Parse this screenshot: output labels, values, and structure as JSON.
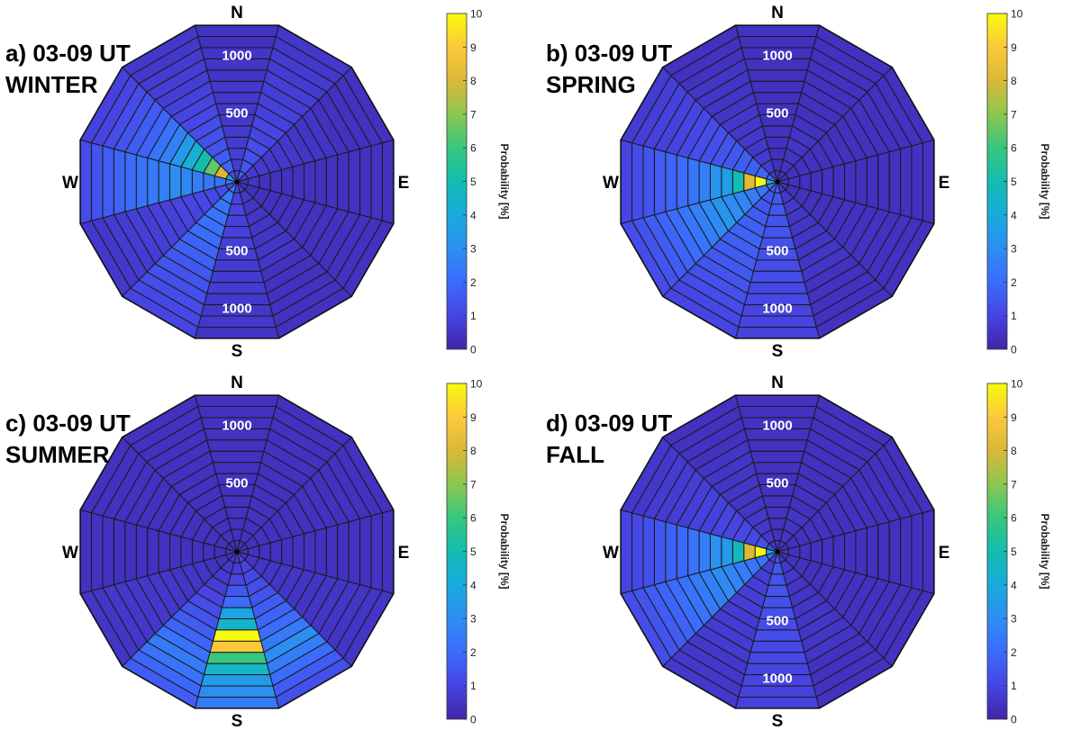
{
  "colorscale": [
    "#3e26a8",
    "#4744e2",
    "#3b6cfc",
    "#2d8ef2",
    "#19aade",
    "#12bdb0",
    "#37c77e",
    "#8bc750",
    "#dbb838",
    "#fbc93a",
    "#f8fa0d"
  ],
  "chart_data": [
    {
      "type": "heatmap",
      "panel_label": "a) 03-09 UT",
      "season": "WINTER",
      "compass": {
        "north": "N",
        "east": "E",
        "south": "S",
        "west": "W"
      },
      "radial_ticks": [
        "500",
        "1000"
      ],
      "radial_ticks_side": "N-S",
      "colorbar": {
        "label": "Probability [%]",
        "range": [
          0,
          10
        ],
        "ticks": [
          "0",
          "1",
          "2",
          "3",
          "4",
          "5",
          "6",
          "7",
          "8",
          "9",
          "10"
        ]
      },
      "sector_values": [
        [
          0.8,
          0.8,
          0.8,
          0.7,
          0.7,
          0.6,
          0.6,
          0.6,
          0.6,
          0.5,
          0.5,
          0.5,
          0.4,
          0.4
        ],
        [
          1.6,
          1.5,
          1.3,
          1.2,
          1.0,
          1.0,
          0.9,
          0.9,
          0.8,
          0.8,
          0.7,
          0.7,
          0.6,
          0.6
        ],
        [
          0.8,
          0.7,
          0.7,
          0.6,
          0.6,
          0.6,
          0.5,
          0.5,
          0.5,
          0.4,
          0.4,
          0.4,
          0.4,
          0.4
        ],
        [
          0.5,
          0.5,
          0.4,
          0.4,
          0.4,
          0.4,
          0.4,
          0.4,
          0.4,
          0.4,
          0.4,
          0.4,
          0.4,
          0.4
        ],
        [
          0.4,
          0.4,
          0.4,
          0.4,
          0.4,
          0.4,
          0.4,
          0.4,
          0.4,
          0.4,
          0.4,
          0.4,
          0.4,
          0.4
        ],
        [
          0.6,
          0.6,
          0.5,
          0.5,
          0.5,
          0.5,
          0.5,
          0.5,
          0.4,
          0.4,
          0.4,
          0.4,
          0.4,
          0.4
        ],
        [
          1.1,
          1.0,
          1.0,
          0.9,
          0.9,
          0.8,
          0.8,
          0.7,
          0.7,
          0.7,
          0.6,
          0.6,
          0.6,
          0.5
        ],
        [
          2.5,
          2.4,
          2.3,
          2.2,
          2.1,
          2.0,
          1.8,
          1.7,
          1.5,
          1.4,
          1.3,
          1.2,
          1.1,
          1.0
        ],
        [
          1.2,
          1.2,
          1.1,
          1.1,
          1.0,
          1.0,
          0.9,
          0.9,
          0.8,
          0.8,
          0.7,
          0.7,
          0.6,
          0.6
        ],
        [
          2.2,
          2.2,
          2.3,
          2.5,
          2.8,
          3.0,
          2.6,
          2.4,
          2.2,
          2.0,
          1.8,
          1.6,
          1.4,
          1.2
        ],
        [
          3.5,
          8.0,
          6.5,
          5.0,
          4.2,
          3.4,
          2.6,
          2.2,
          1.8,
          1.6,
          1.4,
          1.2,
          1.0,
          0.9
        ],
        [
          1.4,
          1.8,
          1.6,
          1.4,
          1.3,
          1.2,
          1.1,
          1.0,
          0.9,
          0.8,
          0.8,
          0.7,
          0.6,
          0.6
        ]
      ]
    },
    {
      "type": "heatmap",
      "panel_label": "b) 03-09 UT",
      "season": "SPRING",
      "compass": {
        "north": "N",
        "east": "E",
        "south": "S",
        "west": "W"
      },
      "radial_ticks": [
        "500",
        "1000"
      ],
      "radial_ticks_side": "N-S",
      "colorbar": {
        "label": "Probability [%]",
        "range": [
          0,
          10
        ],
        "ticks": [
          "0",
          "1",
          "2",
          "3",
          "4",
          "5",
          "6",
          "7",
          "8",
          "9",
          "10"
        ]
      },
      "sector_values": [
        [
          0.4,
          0.4,
          0.4,
          0.4,
          0.4,
          0.4,
          0.4,
          0.4,
          0.4,
          0.4,
          0.4,
          0.4,
          0.4,
          0.4
        ],
        [
          0.5,
          0.5,
          0.5,
          0.5,
          0.5,
          0.4,
          0.4,
          0.4,
          0.4,
          0.4,
          0.4,
          0.4,
          0.4,
          0.4
        ],
        [
          0.4,
          0.4,
          0.4,
          0.4,
          0.4,
          0.4,
          0.4,
          0.4,
          0.4,
          0.4,
          0.4,
          0.4,
          0.4,
          0.4
        ],
        [
          0.4,
          0.4,
          0.4,
          0.4,
          0.4,
          0.4,
          0.4,
          0.4,
          0.4,
          0.4,
          0.4,
          0.4,
          0.4,
          0.4
        ],
        [
          0.4,
          0.4,
          0.4,
          0.4,
          0.4,
          0.4,
          0.4,
          0.4,
          0.4,
          0.4,
          0.4,
          0.4,
          0.4,
          0.4
        ],
        [
          0.6,
          0.6,
          0.6,
          0.5,
          0.5,
          0.5,
          0.5,
          0.5,
          0.5,
          0.4,
          0.4,
          0.4,
          0.4,
          0.4
        ],
        [
          1.6,
          1.5,
          1.5,
          1.4,
          1.4,
          1.3,
          1.3,
          1.2,
          1.2,
          1.1,
          1.1,
          1.0,
          1.0,
          0.9
        ],
        [
          1.5,
          1.5,
          1.5,
          1.6,
          1.7,
          1.8,
          1.7,
          1.6,
          1.5,
          1.4,
          1.3,
          1.2,
          1.1,
          1.0
        ],
        [
          2.3,
          2.3,
          2.5,
          2.8,
          3.0,
          3.2,
          2.9,
          2.6,
          2.3,
          2.0,
          1.8,
          1.6,
          1.4,
          1.2
        ],
        [
          4.2,
          10,
          8.2,
          5.0,
          3.6,
          3.2,
          2.6,
          2.3,
          2.0,
          1.8,
          1.6,
          1.4,
          1.2,
          1.0
        ],
        [
          2.0,
          1.8,
          1.7,
          1.6,
          1.5,
          1.4,
          1.3,
          1.2,
          1.1,
          1.0,
          0.9,
          0.9,
          0.8,
          0.7
        ],
        [
          0.7,
          0.7,
          0.7,
          0.6,
          0.6,
          0.6,
          0.6,
          0.5,
          0.5,
          0.5,
          0.5,
          0.4,
          0.4,
          0.4
        ]
      ]
    },
    {
      "type": "heatmap",
      "panel_label": "c) 03-09 UT",
      "season": "SUMMER",
      "compass": {
        "north": "N",
        "east": "E",
        "south": "S",
        "west": "W"
      },
      "radial_ticks": [
        "500",
        "1000"
      ],
      "radial_ticks_side": "N",
      "colorbar": {
        "label": "Probability [%]",
        "range": [
          0,
          10
        ],
        "ticks": [
          "0",
          "1",
          "2",
          "3",
          "4",
          "5",
          "6",
          "7",
          "8",
          "9",
          "10"
        ]
      },
      "sector_values": [
        [
          0.4,
          0.4,
          0.4,
          0.4,
          0.4,
          0.4,
          0.4,
          0.4,
          0.4,
          0.4,
          0.4,
          0.4,
          0.4,
          0.4
        ],
        [
          0.4,
          0.4,
          0.4,
          0.4,
          0.4,
          0.4,
          0.4,
          0.4,
          0.4,
          0.4,
          0.4,
          0.4,
          0.4,
          0.4
        ],
        [
          0.4,
          0.4,
          0.4,
          0.4,
          0.4,
          0.4,
          0.4,
          0.4,
          0.4,
          0.4,
          0.4,
          0.4,
          0.4,
          0.4
        ],
        [
          0.4,
          0.4,
          0.4,
          0.4,
          0.4,
          0.4,
          0.4,
          0.4,
          0.4,
          0.4,
          0.4,
          0.4,
          0.4,
          0.4
        ],
        [
          0.5,
          0.5,
          0.5,
          0.5,
          0.5,
          0.5,
          0.5,
          0.5,
          0.5,
          0.5,
          0.5,
          0.5,
          0.5,
          0.5
        ],
        [
          1.0,
          1.0,
          1.1,
          1.2,
          1.4,
          1.6,
          1.8,
          2.0,
          2.4,
          3.0,
          2.5,
          2.0,
          1.6,
          1.3
        ],
        [
          0.8,
          0.8,
          1.0,
          1.5,
          2.0,
          3.8,
          4.5,
          10,
          9.0,
          6.0,
          4.5,
          3.5,
          3.0,
          2.4
        ],
        [
          0.6,
          0.6,
          0.7,
          0.8,
          1.0,
          1.2,
          1.4,
          1.6,
          1.8,
          2.2,
          2.4,
          2.2,
          1.9,
          1.6
        ],
        [
          0.4,
          0.4,
          0.4,
          0.5,
          0.5,
          0.5,
          0.6,
          0.6,
          0.6,
          0.6,
          0.6,
          0.6,
          0.5,
          0.5
        ],
        [
          0.4,
          0.4,
          0.4,
          0.4,
          0.4,
          0.4,
          0.4,
          0.4,
          0.4,
          0.4,
          0.4,
          0.4,
          0.4,
          0.4
        ],
        [
          0.4,
          0.4,
          0.4,
          0.4,
          0.4,
          0.4,
          0.4,
          0.4,
          0.4,
          0.4,
          0.4,
          0.4,
          0.4,
          0.4
        ],
        [
          0.4,
          0.4,
          0.4,
          0.4,
          0.4,
          0.4,
          0.4,
          0.4,
          0.4,
          0.4,
          0.4,
          0.4,
          0.4,
          0.4
        ]
      ]
    },
    {
      "type": "heatmap",
      "panel_label": "d) 03-09 UT",
      "season": "FALL",
      "compass": {
        "north": "N",
        "east": "E",
        "south": "S",
        "west": "W"
      },
      "radial_ticks": [
        "500",
        "1000"
      ],
      "radial_ticks_side": "N-S",
      "colorbar": {
        "label": "Probability [%]",
        "range": [
          0,
          10
        ],
        "ticks": [
          "0",
          "1",
          "2",
          "3",
          "4",
          "5",
          "6",
          "7",
          "8",
          "9",
          "10"
        ]
      },
      "sector_values": [
        [
          0.4,
          0.4,
          0.4,
          0.4,
          0.4,
          0.4,
          0.4,
          0.4,
          0.4,
          0.4,
          0.4,
          0.4,
          0.4,
          0.4
        ],
        [
          0.5,
          0.5,
          0.5,
          0.5,
          0.4,
          0.4,
          0.4,
          0.4,
          0.4,
          0.4,
          0.4,
          0.4,
          0.4,
          0.4
        ],
        [
          0.4,
          0.4,
          0.4,
          0.4,
          0.4,
          0.4,
          0.4,
          0.4,
          0.4,
          0.4,
          0.4,
          0.4,
          0.4,
          0.4
        ],
        [
          0.4,
          0.4,
          0.4,
          0.4,
          0.4,
          0.4,
          0.4,
          0.4,
          0.4,
          0.4,
          0.4,
          0.4,
          0.4,
          0.4
        ],
        [
          0.4,
          0.4,
          0.4,
          0.4,
          0.4,
          0.4,
          0.4,
          0.4,
          0.4,
          0.4,
          0.4,
          0.4,
          0.4,
          0.4
        ],
        [
          0.6,
          0.6,
          0.6,
          0.5,
          0.5,
          0.5,
          0.5,
          0.5,
          0.5,
          0.5,
          0.4,
          0.4,
          0.4,
          0.4
        ],
        [
          1.5,
          1.5,
          1.4,
          1.4,
          1.3,
          1.3,
          1.2,
          1.2,
          1.1,
          1.1,
          1.0,
          1.0,
          0.9,
          0.9
        ],
        [
          0.8,
          0.8,
          0.8,
          0.8,
          0.8,
          0.8,
          0.7,
          0.7,
          0.7,
          0.7,
          0.6,
          0.6,
          0.6,
          0.6
        ],
        [
          2.2,
          2.2,
          2.3,
          2.5,
          2.7,
          2.9,
          2.6,
          2.4,
          2.2,
          2.0,
          1.8,
          1.6,
          1.4,
          1.2
        ],
        [
          4.0,
          10,
          8.0,
          4.8,
          3.4,
          3.1,
          2.5,
          2.2,
          1.9,
          1.7,
          1.5,
          1.3,
          1.1,
          1.0
        ],
        [
          1.2,
          1.2,
          1.1,
          1.1,
          1.0,
          1.0,
          0.9,
          0.9,
          0.8,
          0.8,
          0.7,
          0.7,
          0.6,
          0.6
        ],
        [
          0.6,
          0.6,
          0.6,
          0.6,
          0.5,
          0.5,
          0.5,
          0.5,
          0.5,
          0.5,
          0.4,
          0.4,
          0.4,
          0.4
        ]
      ]
    }
  ]
}
